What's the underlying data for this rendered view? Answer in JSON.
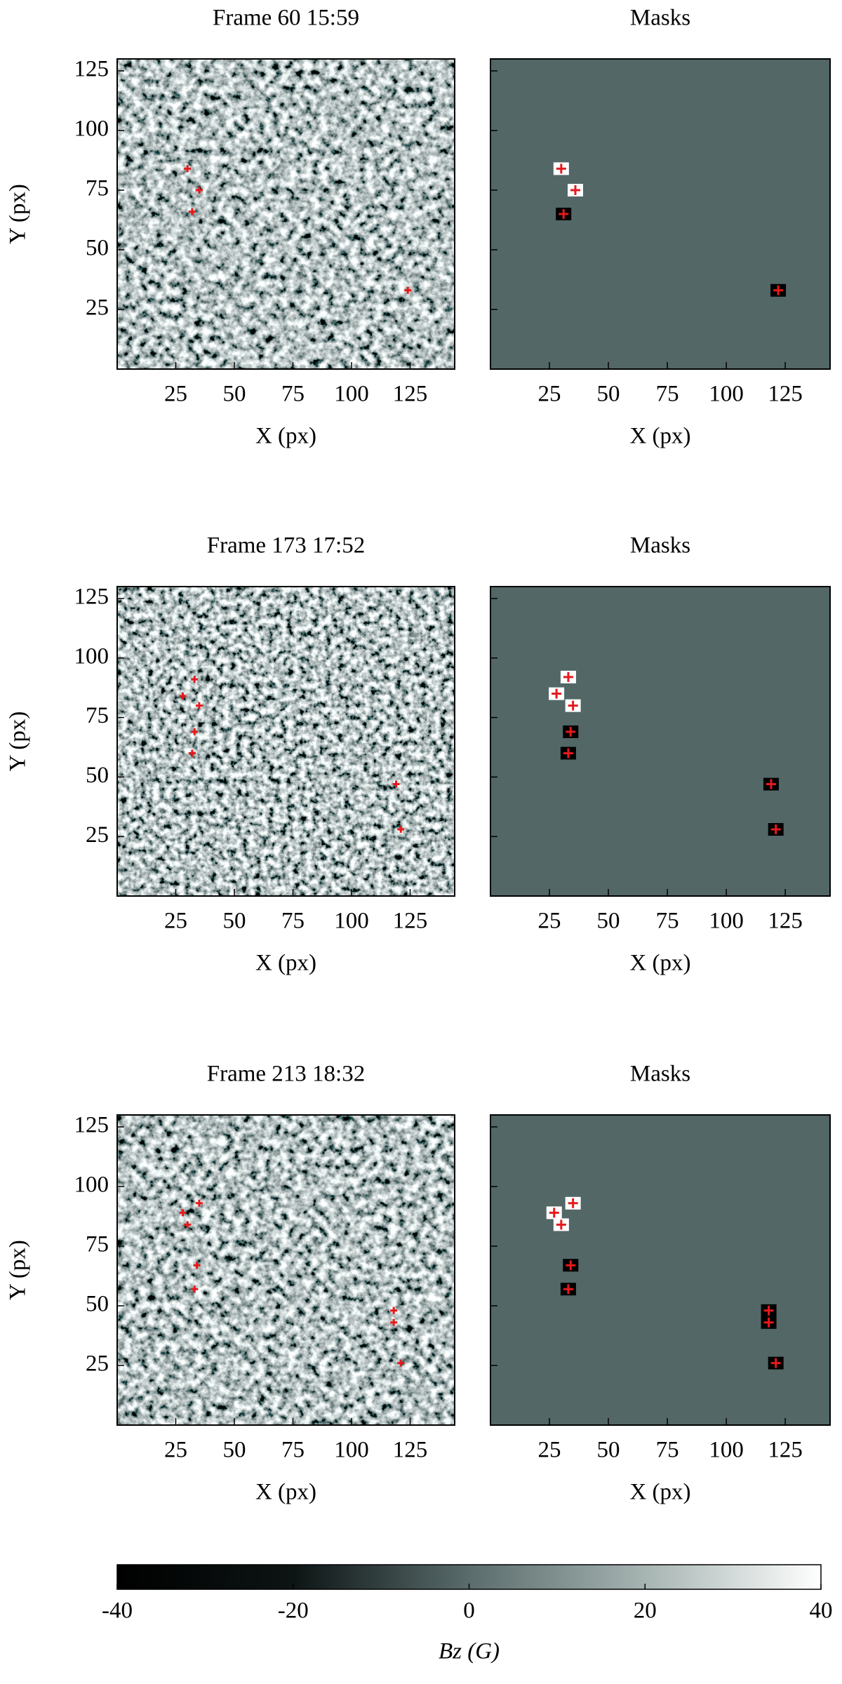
{
  "chart_data": [
    {
      "type": "image",
      "title": "Frame 60 15:59",
      "xlabel": "X (px)",
      "ylabel": "Y (px)",
      "xlim": [
        0,
        144
      ],
      "ylim": [
        0,
        130
      ],
      "xticks": [
        25,
        50,
        75,
        100,
        125
      ],
      "yticks": [
        25,
        50,
        75,
        100,
        125
      ],
      "markers": {
        "color": "#e41a1c",
        "x": [
          30,
          35,
          32,
          124
        ],
        "y": [
          84,
          75,
          66,
          33
        ]
      }
    },
    {
      "type": "mask",
      "title": "Masks",
      "xlabel": "X (px)",
      "xlim": [
        0,
        144
      ],
      "ylim": [
        0,
        130
      ],
      "xticks": [
        25,
        50,
        75,
        100,
        125
      ],
      "yticks": [
        25,
        50,
        75,
        100,
        125
      ],
      "markers": {
        "color": "#e41a1c",
        "x": [
          30,
          36,
          31,
          122
        ],
        "y": [
          84,
          75,
          65,
          33
        ]
      }
    },
    {
      "type": "image",
      "title": "Frame 173 17:52",
      "xlabel": "X (px)",
      "ylabel": "Y (px)",
      "xlim": [
        0,
        144
      ],
      "ylim": [
        0,
        130
      ],
      "xticks": [
        25,
        50,
        75,
        100,
        125
      ],
      "yticks": [
        25,
        50,
        75,
        100,
        125
      ],
      "markers": {
        "color": "#e41a1c",
        "x": [
          33,
          28,
          35,
          33,
          32,
          119,
          121
        ],
        "y": [
          91,
          84,
          80,
          69,
          60,
          47,
          28
        ]
      }
    },
    {
      "type": "mask",
      "title": "Masks",
      "xlabel": "X (px)",
      "xlim": [
        0,
        144
      ],
      "ylim": [
        0,
        130
      ],
      "xticks": [
        25,
        50,
        75,
        100,
        125
      ],
      "yticks": [
        25,
        50,
        75,
        100,
        125
      ],
      "markers": {
        "color": "#e41a1c",
        "x": [
          33,
          28,
          35,
          34,
          33,
          119,
          121
        ],
        "y": [
          92,
          85,
          80,
          69,
          60,
          47,
          28
        ]
      }
    },
    {
      "type": "image",
      "title": "Frame 213 18:32",
      "xlabel": "X (px)",
      "ylabel": "Y (px)",
      "xlim": [
        0,
        144
      ],
      "ylim": [
        0,
        130
      ],
      "xticks": [
        25,
        50,
        75,
        100,
        125
      ],
      "yticks": [
        25,
        50,
        75,
        100,
        125
      ],
      "markers": {
        "color": "#e41a1c",
        "x": [
          35,
          28,
          30,
          34,
          33,
          118,
          118,
          121
        ],
        "y": [
          93,
          89,
          84,
          67,
          57,
          48,
          43,
          26
        ]
      }
    },
    {
      "type": "mask",
      "title": "Masks",
      "xlabel": "X (px)",
      "xlim": [
        0,
        144
      ],
      "ylim": [
        0,
        130
      ],
      "xticks": [
        25,
        50,
        75,
        100,
        125
      ],
      "yticks": [
        25,
        50,
        75,
        100,
        125
      ],
      "markers": {
        "color": "#e41a1c",
        "x": [
          35,
          27,
          30,
          34,
          33,
          118,
          118,
          121
        ],
        "y": [
          93,
          89,
          84,
          67,
          57,
          48,
          43,
          26
        ]
      }
    },
    {
      "type": "colorbar",
      "xlabel": "Bz (G)",
      "xlim": [
        -40,
        40
      ],
      "xticks": [
        -40,
        -20,
        0,
        20,
        40
      ]
    }
  ]
}
